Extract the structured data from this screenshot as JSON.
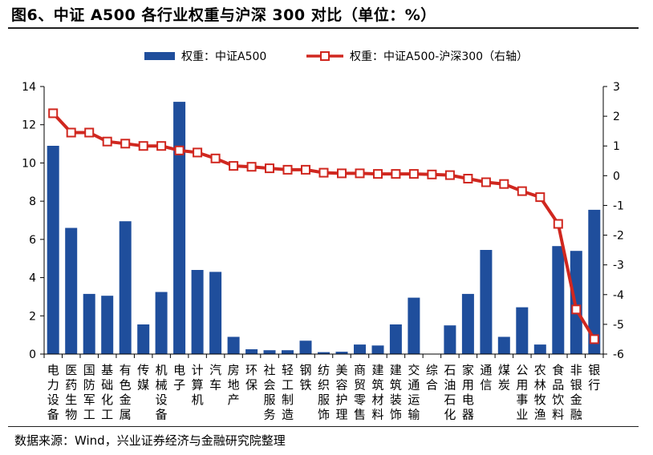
{
  "header": {
    "title": "图6、中证 A500 各行业权重与沪深 300 对比（单位：%）"
  },
  "footer": {
    "source": "数据来源：Wind，兴业证券经济与金融研究院整理"
  },
  "colors": {
    "bar": "#1f4e9c",
    "line": "#d0271f",
    "marker_fill": "#ffffff",
    "axis": "#000000"
  },
  "chart_data": {
    "type": "bar",
    "title": "",
    "legend_position": "top-center",
    "categories": [
      "电力设备",
      "医药生物",
      "国防军工",
      "基础化工",
      "有色金属",
      "传媒",
      "机械设备",
      "电子",
      "计算机",
      "汽车",
      "房地产",
      "环保",
      "社会服务",
      "轻工制造",
      "钢铁",
      "纺织服饰",
      "美容护理",
      "商贸零售",
      "建筑材料",
      "建筑装饰",
      "交通运输",
      "综合",
      "石油石化",
      "家用电器",
      "通信",
      "煤炭",
      "公用事业",
      "农林牧渔",
      "食品饮料",
      "非银金融",
      "银行"
    ],
    "series": [
      {
        "name": "权重：中证A500",
        "type": "bar",
        "axis": "left",
        "values": [
          10.9,
          6.6,
          3.15,
          3.05,
          6.95,
          1.55,
          3.25,
          13.2,
          4.4,
          4.3,
          0.9,
          0.25,
          0.2,
          0.2,
          0.7,
          0.1,
          0.12,
          0.5,
          0.45,
          1.55,
          2.95,
          0.0,
          1.5,
          3.15,
          5.45,
          0.9,
          2.45,
          0.5,
          5.65,
          5.4,
          7.55
        ]
      },
      {
        "name": "权重：中证A500-沪深300（右轴）",
        "type": "line",
        "axis": "right",
        "values": [
          2.1,
          1.45,
          1.45,
          1.15,
          1.08,
          1.0,
          1.0,
          0.85,
          0.78,
          0.58,
          0.33,
          0.3,
          0.25,
          0.2,
          0.2,
          0.1,
          0.08,
          0.08,
          0.06,
          0.06,
          0.06,
          0.04,
          0.02,
          -0.1,
          -0.22,
          -0.28,
          -0.52,
          -0.72,
          -1.62,
          -4.5,
          -5.5
        ]
      }
    ],
    "left_axis": {
      "min": 0,
      "max": 14,
      "ticks": [
        0,
        2,
        4,
        6,
        8,
        10,
        12,
        14
      ]
    },
    "right_axis": {
      "min": -6,
      "max": 3,
      "ticks": [
        -6,
        -5,
        -4,
        -3,
        -2,
        -1,
        0,
        1,
        2,
        3
      ]
    }
  }
}
